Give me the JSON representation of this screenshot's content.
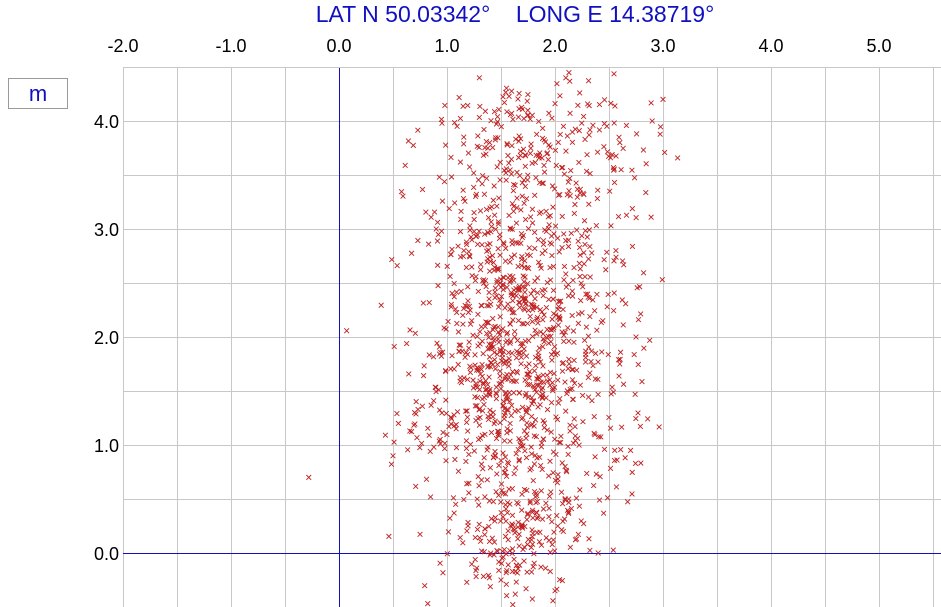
{
  "title": "LAT N 50.03342°    LONG E 14.38719°",
  "unit_label": "m",
  "colors": {
    "title": "#1010c0",
    "axis": "#1010c0",
    "grid": "#c8c8c8",
    "marker": "#c02020"
  },
  "chart_data": {
    "type": "scatter",
    "title": "LAT N 50.03342°    LONG E 14.38719°",
    "ylabel": "m",
    "xlim": [
      -2.0,
      5.55
    ],
    "ylim": [
      -0.5,
      4.5
    ],
    "grid": true,
    "x_ticks": [
      "-2.0",
      "-1.0",
      "0.0",
      "1.0",
      "2.0",
      "3.0",
      "4.0",
      "5.0"
    ],
    "y_ticks": [
      "0.0",
      "1.0",
      "2.0",
      "3.0",
      "4.0"
    ],
    "marker": "x",
    "series": [
      {
        "points_sample": [
          [
            -0.28,
            0.7
          ],
          [
            1.3,
            4.4
          ],
          [
            2.1,
            4.4
          ],
          [
            2.3,
            4.5
          ],
          [
            3.0,
            4.2
          ],
          [
            2.9,
            4.0
          ],
          [
            0.95,
            2.98
          ],
          [
            0.9,
            3.0
          ],
          [
            2.6,
            3.8
          ],
          [
            0.5,
            0.9
          ],
          [
            0.55,
            1.2
          ],
          [
            0.7,
            1.3
          ],
          [
            2.7,
            0.95
          ],
          [
            2.6,
            1.75
          ],
          [
            2.75,
            2.0
          ],
          [
            2.4,
            0.0
          ],
          [
            1.5,
            -0.25
          ],
          [
            2.0,
            -0.35
          ]
        ],
        "clusters": [
          {
            "cx": 1.65,
            "cy": 1.9,
            "sx": 0.42,
            "sy": 1.0,
            "n": 1150
          },
          {
            "cx": 1.8,
            "cy": 3.8,
            "sx": 0.45,
            "sy": 0.35,
            "n": 120
          },
          {
            "cx": 2.5,
            "cy": 3.7,
            "sx": 0.25,
            "sy": 0.3,
            "n": 40
          },
          {
            "cx": 1.6,
            "cy": 0.2,
            "sx": 0.25,
            "sy": 0.25,
            "n": 120
          },
          {
            "cx": 0.75,
            "cy": 1.1,
            "sx": 0.18,
            "sy": 0.15,
            "n": 30
          },
          {
            "cx": 2.65,
            "cy": 1.5,
            "sx": 0.12,
            "sy": 0.8,
            "n": 40
          }
        ]
      }
    ]
  }
}
